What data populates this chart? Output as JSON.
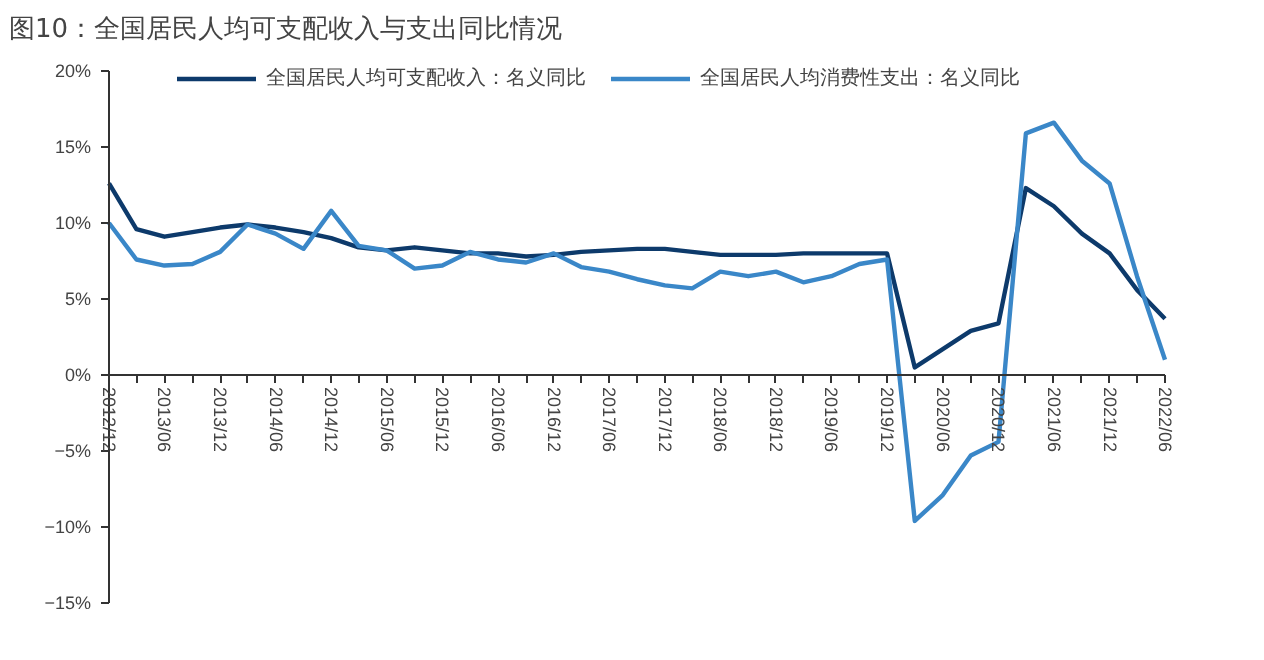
{
  "chart_data": {
    "type": "line",
    "title": "图10：全国居民人均可支配收入与支出同比情况",
    "x": [
      "2012-12",
      "2013-03",
      "2013-06",
      "2013-09",
      "2013-12",
      "2014-03",
      "2014-06",
      "2014-09",
      "2014-12",
      "2015-03",
      "2015-06",
      "2015-09",
      "2015-12",
      "2016-03",
      "2016-06",
      "2016-09",
      "2016-12",
      "2017-03",
      "2017-06",
      "2017-09",
      "2017-12",
      "2018-03",
      "2018-06",
      "2018-09",
      "2018-12",
      "2019-03",
      "2019-06",
      "2019-09",
      "2019-12",
      "2020-03",
      "2020-06",
      "2020-09",
      "2020-12",
      "2021-03",
      "2021-06",
      "2021-09",
      "2021-12",
      "2022-03",
      "2022-06"
    ],
    "series": [
      {
        "name": "全国居民人均可支配收入：名义同比",
        "color": "#0d3a6b",
        "values": [
          12.6,
          9.6,
          9.1,
          9.4,
          9.7,
          9.9,
          9.7,
          9.4,
          9.0,
          8.4,
          8.2,
          8.4,
          8.2,
          8.0,
          8.0,
          7.8,
          7.9,
          8.1,
          8.2,
          8.3,
          8.3,
          8.1,
          7.9,
          7.9,
          7.9,
          8.0,
          8.0,
          8.0,
          8.0,
          0.5,
          1.7,
          2.9,
          3.4,
          12.3,
          11.1,
          9.3,
          8.0,
          5.6,
          3.7
        ]
      },
      {
        "name": "全国居民人均消费性支出：名义同比",
        "color": "#3a87c8",
        "values": [
          10.0,
          7.6,
          7.2,
          7.3,
          8.1,
          9.9,
          9.3,
          8.3,
          10.8,
          8.5,
          8.2,
          7.0,
          7.2,
          8.1,
          7.6,
          7.4,
          8.0,
          7.1,
          6.8,
          6.3,
          5.9,
          5.7,
          6.8,
          6.5,
          6.8,
          6.1,
          6.5,
          7.3,
          7.6,
          -9.6,
          -7.9,
          -5.3,
          -4.4,
          15.9,
          16.6,
          14.1,
          12.6,
          6.5,
          1.0
        ]
      }
    ],
    "xlim": [
      "2012-12",
      "2022-06"
    ],
    "xticks": [
      {
        "value": "2012-12",
        "label": "2012/12"
      },
      {
        "value": "2013-03",
        "label": null
      },
      {
        "value": "2013-06",
        "label": "2013/06"
      },
      {
        "value": "2013-09",
        "label": null
      },
      {
        "value": "2013-12",
        "label": "2013/12"
      },
      {
        "value": "2014-03",
        "label": null
      },
      {
        "value": "2014-06",
        "label": "2014/06"
      },
      {
        "value": "2014-09",
        "label": null
      },
      {
        "value": "2014-12",
        "label": "2014/12"
      },
      {
        "value": "2015-03",
        "label": null
      },
      {
        "value": "2015-06",
        "label": "2015/06"
      },
      {
        "value": "2015-09",
        "label": null
      },
      {
        "value": "2015-12",
        "label": "2015/12"
      },
      {
        "value": "2016-03",
        "label": null
      },
      {
        "value": "2016-06",
        "label": "2016/06"
      },
      {
        "value": "2016-09",
        "label": null
      },
      {
        "value": "2016-12",
        "label": "2016/12"
      },
      {
        "value": "2017-03",
        "label": null
      },
      {
        "value": "2017-06",
        "label": "2017/06"
      },
      {
        "value": "2017-09",
        "label": null
      },
      {
        "value": "2017-12",
        "label": "2017/12"
      },
      {
        "value": "2018-03",
        "label": null
      },
      {
        "value": "2018-06",
        "label": "2018/06"
      },
      {
        "value": "2018-09",
        "label": null
      },
      {
        "value": "2018-12",
        "label": "2018/12"
      },
      {
        "value": "2019-03",
        "label": null
      },
      {
        "value": "2019-06",
        "label": "2019/06"
      },
      {
        "value": "2019-09",
        "label": null
      },
      {
        "value": "2019-12",
        "label": "2019/12"
      },
      {
        "value": "2020-03",
        "label": null
      },
      {
        "value": "2020-06",
        "label": "2020/06"
      },
      {
        "value": "2020-09",
        "label": null
      },
      {
        "value": "2020-12",
        "label": "2020/12"
      },
      {
        "value": "2021-03",
        "label": null
      },
      {
        "value": "2021-06",
        "label": "2021/06"
      },
      {
        "value": "2021-09",
        "label": null
      },
      {
        "value": "2021-12",
        "label": "2021/12"
      },
      {
        "value": "2022-03",
        "label": null
      },
      {
        "value": "2022-06",
        "label": "2022/06"
      }
    ],
    "ylim": [
      -15,
      20
    ],
    "yticks": [
      {
        "value": 20,
        "label": "20%"
      },
      {
        "value": 15,
        "label": "15%"
      },
      {
        "value": 10,
        "label": "10%"
      },
      {
        "value": 5,
        "label": "5%"
      },
      {
        "value": 0,
        "label": "0%"
      },
      {
        "value": -5,
        "label": "−5%"
      },
      {
        "value": -10,
        "label": "−10%"
      },
      {
        "value": -15,
        "label": "−15%"
      }
    ],
    "grid": false,
    "legend": "top",
    "line_style": "solid"
  }
}
